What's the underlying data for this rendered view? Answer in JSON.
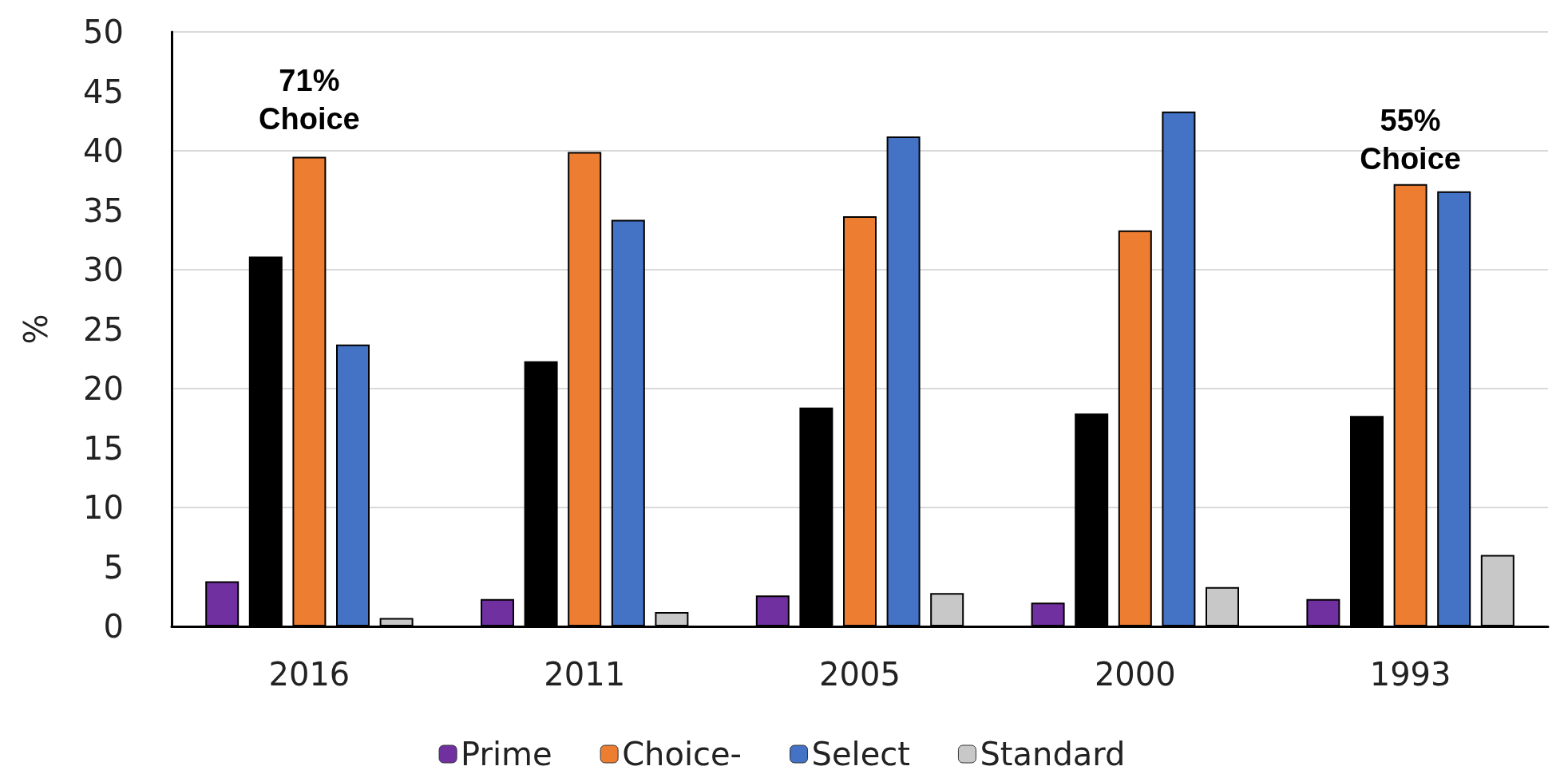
{
  "chart_data": {
    "type": "bar",
    "ylabel": "%",
    "categories": [
      "2016",
      "2011",
      "2005",
      "2000",
      "1993"
    ],
    "series": [
      {
        "name": "Prime",
        "color": "#7030a0",
        "values": [
          3.8,
          2.3,
          2.6,
          2.0,
          2.3
        ]
      },
      {
        "color": "#000000",
        "values": [
          31.1,
          22.3,
          18.4,
          17.9,
          17.7
        ]
      },
      {
        "name": "Choice-",
        "color": "#ed7d31",
        "values": [
          39.5,
          39.9,
          34.5,
          33.3,
          37.2
        ]
      },
      {
        "name": "Select",
        "color": "#4472c4",
        "values": [
          23.7,
          34.2,
          41.2,
          43.3,
          36.6
        ]
      },
      {
        "name": "Standard",
        "color": "#c8c8c8",
        "values": [
          0.7,
          1.2,
          2.8,
          3.3,
          6.0
        ]
      }
    ],
    "ylim": [
      0,
      50
    ],
    "yticks": [
      0,
      5,
      10,
      15,
      20,
      25,
      30,
      35,
      40,
      45,
      50
    ],
    "grid": "y",
    "legend": "bottom",
    "annotations": [
      "71%\nChoice",
      "55%\nChoice"
    ]
  }
}
